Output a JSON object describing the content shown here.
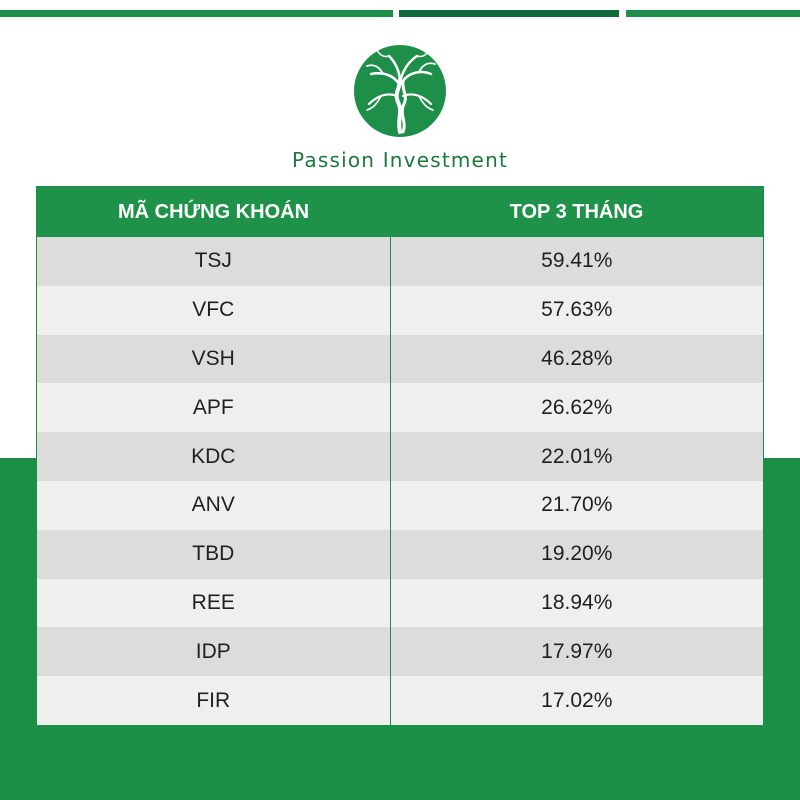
{
  "brand": {
    "name": "Passion Investment"
  },
  "colors": {
    "brand_green": "#1a8f45",
    "header_green": "#1e9248",
    "dark_green": "#0f6b3a"
  },
  "table": {
    "headers": [
      "MÃ CHỨNG KHOÁN",
      "TOP 3 THÁNG"
    ],
    "rows": [
      {
        "code": "TSJ",
        "value": "59.41%"
      },
      {
        "code": "VFC",
        "value": "57.63%"
      },
      {
        "code": "VSH",
        "value": "46.28%"
      },
      {
        "code": "APF",
        "value": "26.62%"
      },
      {
        "code": "KDC",
        "value": "22.01%"
      },
      {
        "code": "ANV",
        "value": "21.70%"
      },
      {
        "code": "TBD",
        "value": "19.20%"
      },
      {
        "code": "REE",
        "value": "18.94%"
      },
      {
        "code": "IDP",
        "value": "17.97%"
      },
      {
        "code": "FIR",
        "value": "17.02%"
      }
    ]
  }
}
